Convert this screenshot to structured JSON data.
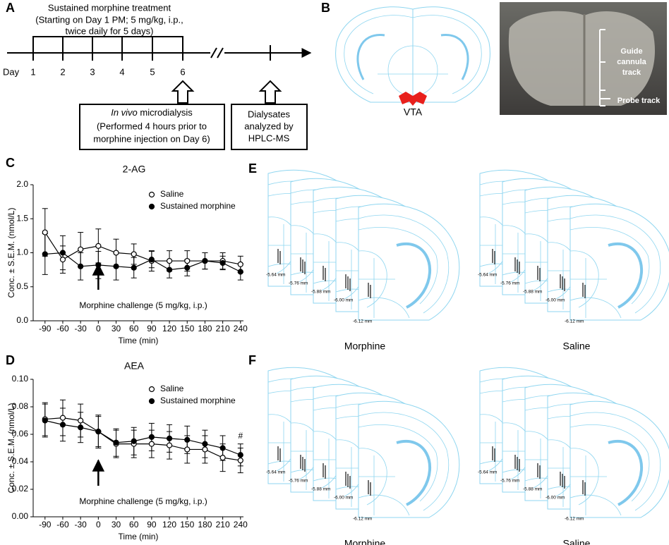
{
  "panel_labels": [
    "A",
    "B",
    "C",
    "D",
    "E",
    "F"
  ],
  "panel_a": {
    "treatment_lines": [
      "Sustained morphine treatment",
      "(Starting on Day 1 PM; 5 mg/kg, i.p.,",
      "twice daily for 5 days)"
    ],
    "day_label": "Day",
    "days": [
      "1",
      "2",
      "3",
      "4",
      "5",
      "6"
    ],
    "box1_italic": "In vivo",
    "box1_rest": " microdialysis",
    "box1_lines": [
      "(Performed 4 hours prior to",
      "morphine injection on Day 6)"
    ],
    "box2_lines": [
      "Dialysates",
      "analyzed by",
      "HPLC-MS"
    ]
  },
  "panel_b": {
    "region": "VTA",
    "guide_track": [
      "Guide",
      "cannula",
      "track"
    ],
    "probe_track": "Probe track"
  },
  "panel_e": {
    "sections": [
      "-5.64 mm",
      "-5.76 mm",
      "-5.88 mm",
      "-6.00 mm",
      "-6.12 mm"
    ],
    "groups": [
      "Morphine",
      "Saline"
    ]
  },
  "panel_f": {
    "sections": [
      "-5.64 mm",
      "-5.76 mm",
      "-5.88 mm",
      "-6.00 mm",
      "-6.12 mm"
    ],
    "groups": [
      "Morphine",
      "Saline"
    ]
  },
  "chart_data": [
    {
      "type": "line",
      "title": "2-AG",
      "xlabel": "Time (min)",
      "ylabel": "Conc. ± S.E.M. (nmol/L)",
      "x": [
        -90,
        -60,
        -30,
        0,
        30,
        60,
        90,
        120,
        150,
        180,
        210,
        240
      ],
      "xlim": [
        -110,
        245
      ],
      "xticks": [
        -90,
        -60,
        -30,
        0,
        30,
        60,
        90,
        120,
        150,
        180,
        210,
        240
      ],
      "ylim": [
        0,
        2
      ],
      "yticks": [
        {
          "value": 0,
          "label": "0.0"
        },
        {
          "value": 0.5,
          "label": "0.5"
        },
        {
          "value": 1,
          "label": "1.0"
        },
        {
          "value": 1.5,
          "label": "1.5"
        },
        {
          "value": 2,
          "label": "2.0"
        }
      ],
      "legend": "upper right",
      "series": [
        {
          "name": "Saline",
          "color": "#000000",
          "marker": "open",
          "values": [
            1.3,
            0.9,
            1.05,
            1.1,
            1.0,
            0.98,
            0.88,
            0.88,
            0.88,
            0.88,
            0.88,
            0.83
          ],
          "errors": [
            0.35,
            0.2,
            0.25,
            0.25,
            0.2,
            0.15,
            0.15,
            0.15,
            0.15,
            0.12,
            0.12,
            0.12
          ]
        },
        {
          "name": "Sustained morphine",
          "color": "#000000",
          "marker": "filled",
          "values": [
            0.98,
            1.0,
            0.8,
            0.82,
            0.8,
            0.78,
            0.9,
            0.75,
            0.78,
            0.88,
            0.85,
            0.72
          ],
          "errors": [
            0.3,
            0.25,
            0.2,
            0.2,
            0.2,
            0.15,
            0.12,
            0.12,
            0.12,
            0.12,
            0.1,
            0.12
          ]
        }
      ],
      "annotations": [
        {
          "text": "Morphine challenge (5 mg/kg, i.p.)",
          "x": 0,
          "arrow": true
        }
      ]
    },
    {
      "type": "line",
      "title": "AEA",
      "xlabel": "Time (min)",
      "ylabel": "Conc. ± S.E.M. (nmol/L)",
      "x": [
        -90,
        -60,
        -30,
        0,
        30,
        60,
        90,
        120,
        150,
        180,
        210,
        240
      ],
      "xlim": [
        -110,
        245
      ],
      "xticks": [
        -90,
        -60,
        -30,
        0,
        30,
        60,
        90,
        120,
        150,
        180,
        210,
        240
      ],
      "ylim": [
        0,
        0.1
      ],
      "yticks": [
        {
          "value": 0,
          "label": "0.00"
        },
        {
          "value": 0.02,
          "label": "0.02"
        },
        {
          "value": 0.04,
          "label": "0.04"
        },
        {
          "value": 0.06,
          "label": "0.06"
        },
        {
          "value": 0.08,
          "label": "0.08"
        },
        {
          "value": 0.1,
          "label": "0.10"
        }
      ],
      "legend": "upper right",
      "series": [
        {
          "name": "Saline",
          "color": "#000000",
          "marker": "open",
          "values": [
            0.071,
            0.072,
            0.07,
            0.062,
            0.053,
            0.053,
            0.053,
            0.052,
            0.049,
            0.049,
            0.043,
            0.041
          ],
          "errors": [
            0.012,
            0.013,
            0.012,
            0.012,
            0.01,
            0.01,
            0.01,
            0.01,
            0.01,
            0.01,
            0.01,
            0.009
          ]
        },
        {
          "name": "Sustained morphine",
          "color": "#000000",
          "marker": "filled",
          "values": [
            0.07,
            0.067,
            0.065,
            0.062,
            0.054,
            0.055,
            0.058,
            0.057,
            0.056,
            0.053,
            0.05,
            0.045
          ],
          "errors": [
            0.012,
            0.012,
            0.011,
            0.011,
            0.01,
            0.01,
            0.01,
            0.01,
            0.01,
            0.01,
            0.009,
            0.008
          ]
        }
      ],
      "annotations": [
        {
          "text": "Morphine challenge (5 mg/kg, i.p.)",
          "x": 0,
          "arrow": true
        },
        {
          "text": "#",
          "x": 240
        }
      ]
    }
  ]
}
